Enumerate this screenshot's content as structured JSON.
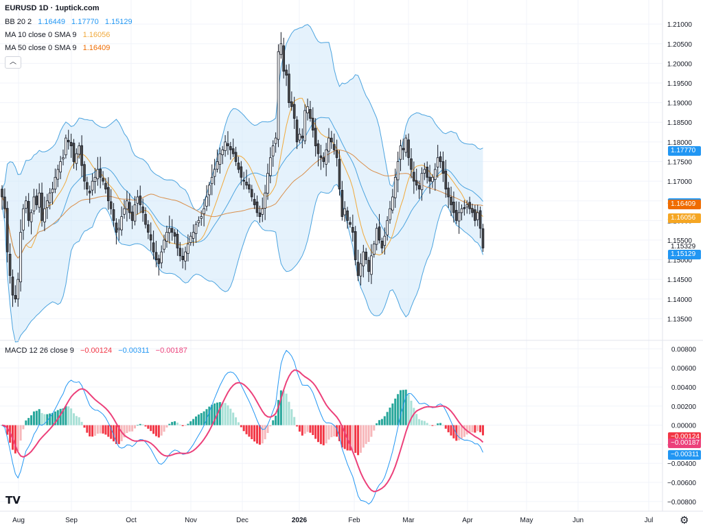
{
  "header": {
    "symbol": "EURUSD 1D · 1uptick.com",
    "bb": {
      "label": "BB 20 2",
      "mid": "1.16449",
      "upper": "1.17770",
      "lower": "1.15129"
    },
    "ma10": {
      "label": "MA 10 close 0 SMA 9",
      "value": "1.16056"
    },
    "ma50": {
      "label": "MA 50 close 0 SMA 9",
      "value": "1.16409"
    },
    "macd": {
      "label": "MACD 12 26 close 9",
      "hist": "−0.00124",
      "macd": "−0.00311",
      "signal": "−0.00187"
    }
  },
  "price_labels": [
    {
      "text": "1.17770",
      "price": 1.1777,
      "color": "#2196f3"
    },
    {
      "text": "1.16449",
      "price": 1.16449,
      "color": "#2196f3"
    },
    {
      "text": "1.16409",
      "price": 1.16409,
      "color": "#ef6c00"
    },
    {
      "text": "1.16056",
      "price": 1.16056,
      "color": "#f5a623"
    },
    {
      "text": "1.15329",
      "price": 1.15329,
      "color": ""
    },
    {
      "text": "1.15129",
      "price": 1.15129,
      "color": "#2196f3"
    }
  ],
  "macd_labels": [
    {
      "text": "−0.00124",
      "value": -0.00124,
      "color": "#f23645"
    },
    {
      "text": "−0.00187",
      "value": -0.00187,
      "color": "#ec407a"
    },
    {
      "text": "−0.00311",
      "value": -0.00311,
      "color": "#2196f3"
    }
  ],
  "footer": {
    "logo": "TV",
    "settings_icon": "gear-icon"
  },
  "colors": {
    "up": "#ffffff",
    "down": "#4a4a4a",
    "wick": "#131722",
    "bb_band": "#4aa3df",
    "bb_fill": "#cfe8f9",
    "ma10": "#f0a93b",
    "ma50": "#d98e4a",
    "macd_line": "#2196f3",
    "signal_line": "#ec407a",
    "hist_up_strong": "#26a69a",
    "hist_up_weak": "#a8e0d6",
    "hist_down_strong": "#f23645",
    "hist_down_weak": "#f7b7ba"
  },
  "chart_data": [
    {
      "type": "candlestick",
      "title": "EURUSD 1D · 1uptick.com",
      "x_tick_labels": [
        "Aug",
        "Sep",
        "Oct",
        "Nov",
        "Dec",
        "2026",
        "Feb",
        "Mar",
        "Apr",
        "May",
        "Jun",
        "Jul"
      ],
      "y_tick_labels": [
        "1.21000",
        "1.20500",
        "1.20000",
        "1.19500",
        "1.19000",
        "1.18500",
        "1.18000",
        "1.17500",
        "1.17000",
        "1.16500",
        "1.16000",
        "1.15500",
        "1.15000",
        "1.14500",
        "1.14000",
        "1.13500"
      ],
      "ylim": [
        1.13,
        1.213
      ],
      "grid": true,
      "ohlc_close_approx": [
        1.166,
        1.163,
        1.152,
        1.146,
        1.141,
        1.14,
        1.145,
        1.157,
        1.163,
        1.165,
        1.16,
        1.162,
        1.166,
        1.164,
        1.167,
        1.16,
        1.163,
        1.165,
        1.167,
        1.168,
        1.171,
        1.173,
        1.175,
        1.176,
        1.181,
        1.18,
        1.179,
        1.175,
        1.177,
        1.179,
        1.174,
        1.17,
        1.168,
        1.167,
        1.17,
        1.171,
        1.173,
        1.171,
        1.17,
        1.168,
        1.165,
        1.163,
        1.16,
        1.157,
        1.158,
        1.161,
        1.163,
        1.165,
        1.162,
        1.16,
        1.164,
        1.166,
        1.164,
        1.162,
        1.159,
        1.157,
        1.155,
        1.152,
        1.15,
        1.149,
        1.152,
        1.155,
        1.157,
        1.158,
        1.157,
        1.156,
        1.153,
        1.151,
        1.15,
        1.152,
        1.154,
        1.156,
        1.157,
        1.159,
        1.16,
        1.161,
        1.163,
        1.166,
        1.169,
        1.171,
        1.173,
        1.175,
        1.177,
        1.178,
        1.18,
        1.179,
        1.178,
        1.177,
        1.175,
        1.173,
        1.171,
        1.17,
        1.169,
        1.168,
        1.166,
        1.164,
        1.162,
        1.161,
        1.163,
        1.167,
        1.172,
        1.176,
        1.179,
        1.181,
        1.203,
        1.205,
        1.198,
        1.197,
        1.19,
        1.189,
        1.186,
        1.18,
        1.182,
        1.181,
        1.188,
        1.189,
        1.186,
        1.183,
        1.179,
        1.177,
        1.176,
        1.175,
        1.178,
        1.181,
        1.18,
        1.178,
        1.176,
        1.168,
        1.161,
        1.163,
        1.16,
        1.159,
        1.157,
        1.15,
        1.146,
        1.149,
        1.152,
        1.15,
        1.147,
        1.151,
        1.154,
        1.158,
        1.155,
        1.153,
        1.156,
        1.16,
        1.163,
        1.166,
        1.171,
        1.175,
        1.179,
        1.178,
        1.181,
        1.176,
        1.173,
        1.17,
        1.169,
        1.168,
        1.172,
        1.173,
        1.171,
        1.17,
        1.171,
        1.173,
        1.176,
        1.175,
        1.172,
        1.168,
        1.166,
        1.164,
        1.162,
        1.16,
        1.162,
        1.163,
        1.163,
        1.164,
        1.163,
        1.162,
        1.16,
        1.162,
        1.158,
        1.153
      ],
      "bollinger_20_2": {
        "upper_last": 1.1777,
        "mid_last": 1.16449,
        "lower_last": 1.15129
      },
      "ma10_last": 1.16056,
      "ma50_last": 1.16409
    },
    {
      "type": "bar",
      "title": "MACD 12 26 close 9",
      "y_tick_labels": [
        "0.00800",
        "0.00600",
        "0.00400",
        "0.00200",
        "0.00000",
        "−0.00200",
        "−0.00400",
        "−0.00600",
        "−0.00800"
      ],
      "ylim": [
        -0.0088,
        0.0086
      ],
      "series": [
        {
          "name": "MACD",
          "last": -0.00311
        },
        {
          "name": "Signal",
          "last": -0.00187
        },
        {
          "name": "Histogram",
          "last": -0.00124
        }
      ]
    }
  ]
}
